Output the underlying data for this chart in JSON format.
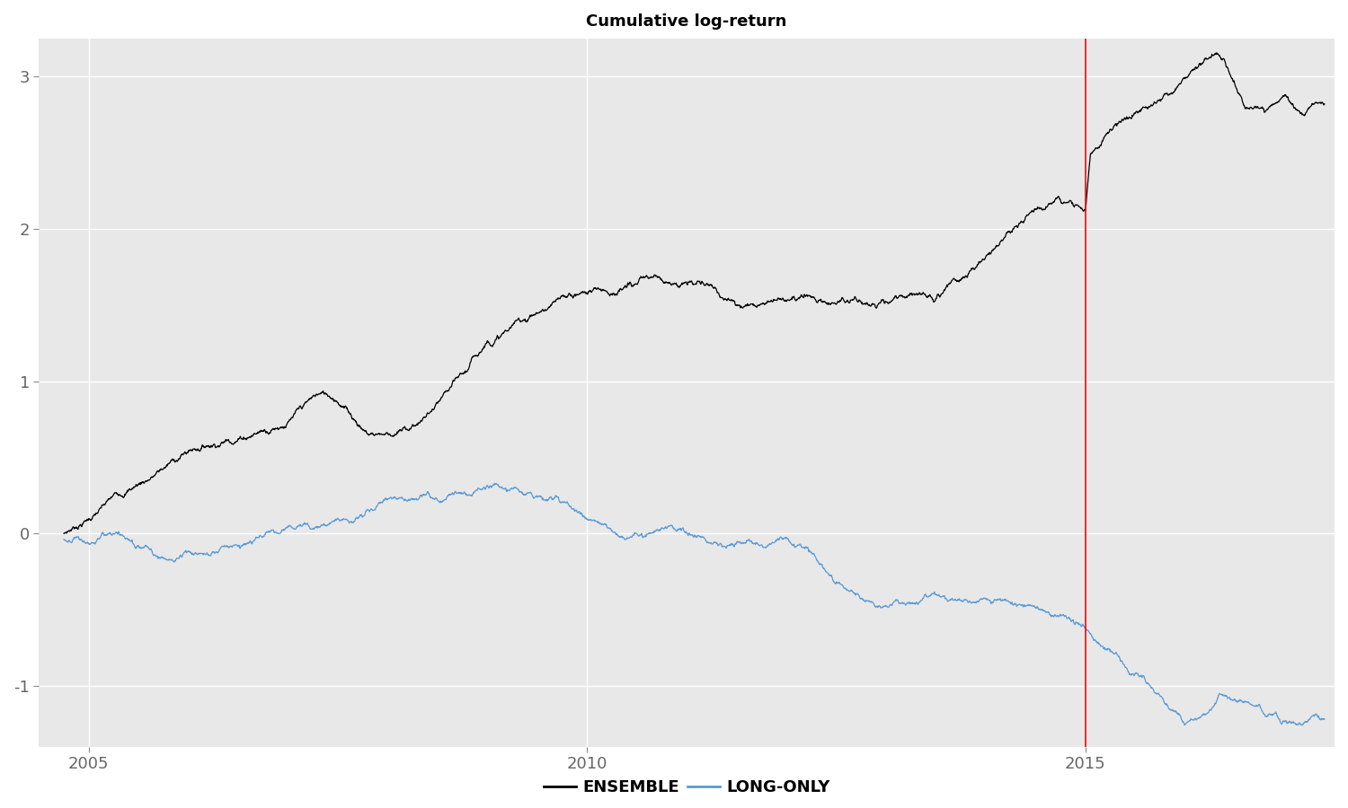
{
  "title": "Cumulative log-return",
  "title_fontsize": 13,
  "background_color": "#E8E8E8",
  "fig_background_color": "#FFFFFF",
  "ensemble_color": "#000000",
  "longonly_color": "#5B9BD5",
  "vline_color": "#FF0000",
  "vline_x": 2015.0,
  "xmin": 2004.5,
  "xmax": 2017.5,
  "ymin": -1.4,
  "ymax": 3.25,
  "yticks": [
    -1.0,
    0.0,
    1.0,
    2.0,
    3.0
  ],
  "xticks": [
    2005,
    2010,
    2015
  ],
  "legend_labels": [
    "ENSEMBLE",
    "LONG-ONLY"
  ],
  "legend_colors": [
    "#000000",
    "#5B9BD5"
  ],
  "seed": 7
}
